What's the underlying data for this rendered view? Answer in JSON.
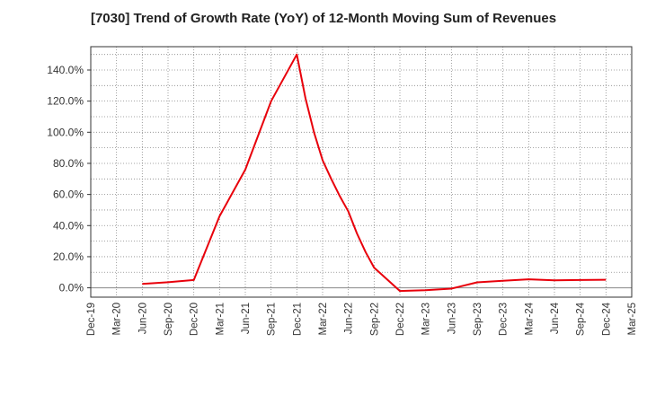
{
  "chart_data": {
    "type": "line",
    "title": "[7030]  Trend of Growth Rate (YoY) of 12-Month Moving Sum of Revenues",
    "xlabel": "",
    "ylabel": "",
    "x_ticks": [
      "Dec-19",
      "Mar-20",
      "Jun-20",
      "Sep-20",
      "Dec-20",
      "Mar-21",
      "Jun-21",
      "Sep-21",
      "Dec-21",
      "Mar-22",
      "Jun-22",
      "Sep-22",
      "Dec-22",
      "Mar-23",
      "Jun-23",
      "Sep-23",
      "Dec-23",
      "Mar-24",
      "Jun-24",
      "Sep-24",
      "Dec-24",
      "Mar-25"
    ],
    "y_ticks": [
      "0.0%",
      "20.0%",
      "40.0%",
      "60.0%",
      "80.0%",
      "100.0%",
      "120.0%",
      "140.0%"
    ],
    "y_tick_values": [
      0,
      20,
      40,
      60,
      80,
      100,
      120,
      140
    ],
    "ylim": [
      -6,
      155
    ],
    "grid": true,
    "series": [
      {
        "color": "#e8000b",
        "points": [
          {
            "x": "Jun-20",
            "y": 2.5
          },
          {
            "x": "Sep-20",
            "y": 3.6
          },
          {
            "x": "Dec-20",
            "y": 5.0
          },
          {
            "x": "Mar-21",
            "y": 46.0
          },
          {
            "x": "Jun-21",
            "y": 76.0
          },
          {
            "x": "Sep-21",
            "y": 120.0
          },
          {
            "x": "Dec-21",
            "y": 150.0
          },
          {
            "x": "Jan-22",
            "y": 122.0
          },
          {
            "x": "Feb-22",
            "y": 100.0
          },
          {
            "x": "Mar-22",
            "y": 82.0
          },
          {
            "x": "Apr-22",
            "y": 70.0
          },
          {
            "x": "May-22",
            "y": 59.0
          },
          {
            "x": "Jun-22",
            "y": 49.0
          },
          {
            "x": "Jul-22",
            "y": 35.0
          },
          {
            "x": "Aug-22",
            "y": 23.0
          },
          {
            "x": "Sep-22",
            "y": 13.0
          },
          {
            "x": "Dec-22",
            "y": -2.0
          },
          {
            "x": "Mar-23",
            "y": -1.5
          },
          {
            "x": "Jun-23",
            "y": -0.5
          },
          {
            "x": "Sep-23",
            "y": 3.5
          },
          {
            "x": "Dec-23",
            "y": 4.5
          },
          {
            "x": "Mar-24",
            "y": 5.5
          },
          {
            "x": "Jun-24",
            "y": 4.8
          },
          {
            "x": "Sep-24",
            "y": 5.0
          },
          {
            "x": "Dec-24",
            "y": 5.2
          }
        ]
      }
    ]
  }
}
